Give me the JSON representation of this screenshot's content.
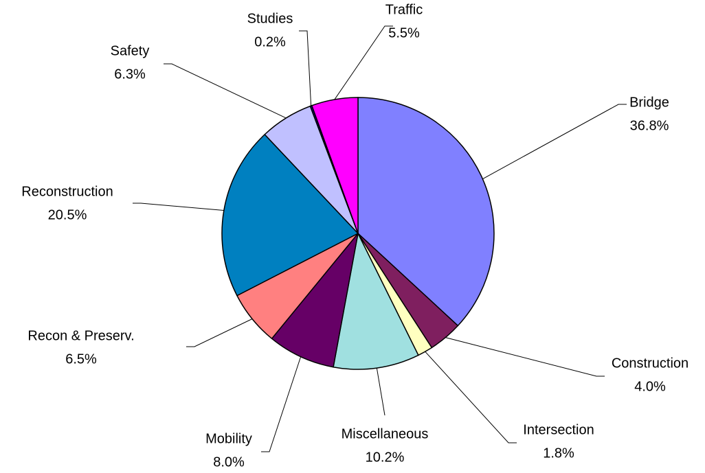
{
  "chart_data": {
    "type": "pie",
    "categories": [
      "Bridge",
      "Construction",
      "Intersection",
      "Miscellaneous",
      "Mobility",
      "Recon & Preserv.",
      "Reconstruction",
      "Safety",
      "Studies",
      "Traffic"
    ],
    "values": [
      36.8,
      4.0,
      1.8,
      10.2,
      8.0,
      6.5,
      20.5,
      6.3,
      0.2,
      5.5
    ],
    "value_labels": [
      "36.8%",
      "4.0%",
      "1.8%",
      "10.2%",
      "8.0%",
      "6.5%",
      "20.5%",
      "6.3%",
      "0.2%",
      "5.5%"
    ],
    "colors": [
      "#8080ff",
      "#7f1f5f",
      "#ffffc0",
      "#a0e0e0",
      "#660066",
      "#ff8080",
      "#0080c0",
      "#c0c0ff",
      "#000080",
      "#ff00ff"
    ]
  }
}
